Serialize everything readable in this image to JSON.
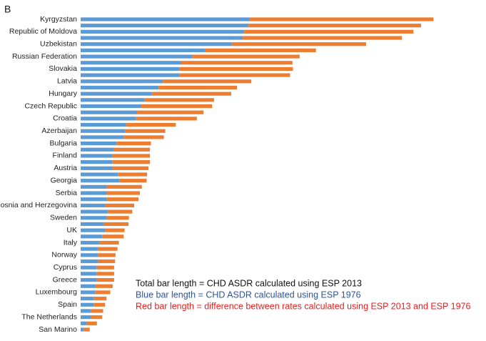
{
  "chart_data": {
    "type": "stacked-barh",
    "panel": "B",
    "categories": [
      "Kyrgyzstan",
      null,
      "Republic of Moldova",
      null,
      "Uzbekistan",
      null,
      "Russian Federation",
      null,
      "Slovakia",
      null,
      "Latvia",
      null,
      "Hungary",
      null,
      "Czech Republic",
      null,
      "Croatia",
      null,
      "Azerbaijan",
      null,
      "Bulgaria",
      null,
      "Finland",
      null,
      "Austria",
      null,
      "Georgia",
      null,
      "Serbia",
      null,
      "Bosnia and Herzegovina",
      null,
      "Sweden",
      null,
      "UK",
      null,
      "Italy",
      null,
      "Norway",
      null,
      "Cyprus",
      null,
      "Greece",
      null,
      "Luxembourg",
      null,
      "Spain",
      null,
      "The Netherlands",
      null,
      "San Marino"
    ],
    "series": [
      {
        "color": "#5b9bd5",
        "values": [
          354,
          351,
          342,
          339,
          316,
          261,
          234,
          209,
          207,
          207,
          172,
          163,
          149,
          134,
          127,
          118,
          116,
          95,
          93,
          90,
          75,
          70,
          67,
          66,
          67,
          78,
          81,
          55,
          55,
          55,
          52,
          57,
          55,
          49,
          52,
          45,
          40,
          37,
          36,
          36,
          34,
          34,
          33,
          31,
          31,
          27,
          27,
          22,
          21,
          13,
          7
        ]
      },
      {
        "color": "#ed7d31",
        "values": [
          384,
          361,
          354,
          333,
          281,
          231,
          224,
          234,
          237,
          231,
          185,
          164,
          166,
          145,
          148,
          139,
          127,
          104,
          84,
          84,
          72,
          75,
          78,
          79,
          75,
          61,
          57,
          73,
          69,
          66,
          60,
          51,
          46,
          51,
          40,
          45,
          40,
          40,
          37,
          36,
          36,
          36,
          37,
          36,
          31,
          27,
          24,
          25,
          24,
          21,
          12
        ]
      }
    ],
    "xlim": [
      0,
      800
    ],
    "annotations": [
      {
        "text": "Total bar length = CHD ASDR calculated using ESP 2013",
        "color": "#111111"
      },
      {
        "text": "Blue bar length = CHD ASDR calculated using ESP 1976",
        "color": "#2e5496"
      },
      {
        "text": "Red bar length = difference between rates calculated using ESP 2013 and ESP 1976",
        "color": "#e8201e"
      }
    ]
  }
}
